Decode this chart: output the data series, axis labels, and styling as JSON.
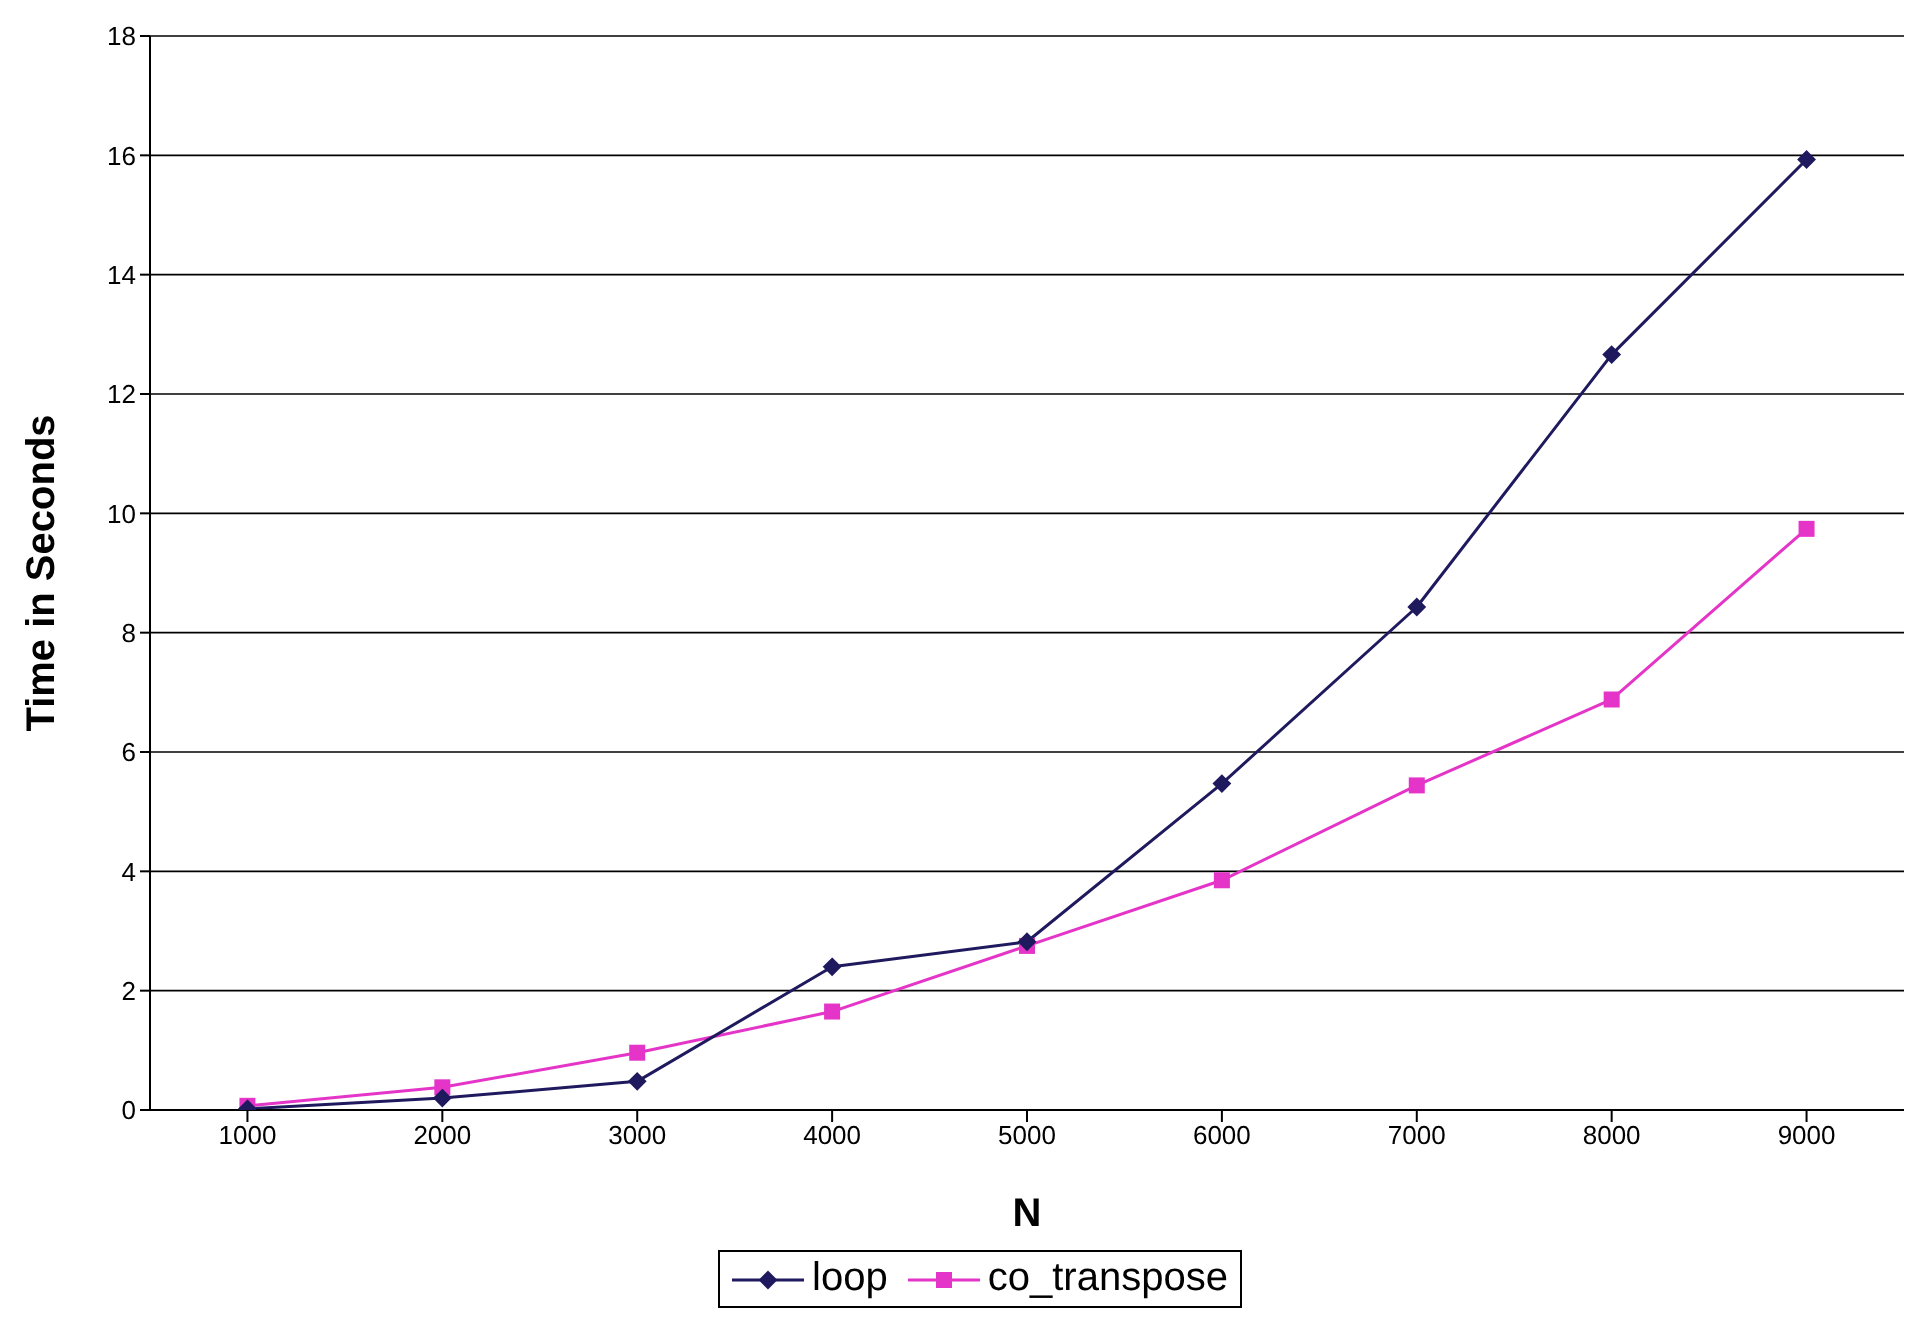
{
  "chart_data": {
    "type": "line",
    "xlabel": "N",
    "ylabel": "Time in Seconds",
    "categories": [
      "1000",
      "2000",
      "3000",
      "4000",
      "5000",
      "6000",
      "7000",
      "8000",
      "9000"
    ],
    "series": [
      {
        "name": "loop",
        "color": "#1f1a5e",
        "marker": "diamond",
        "values": [
          0.02,
          0.2,
          0.48,
          2.4,
          2.82,
          5.47,
          8.43,
          12.66,
          15.93
        ]
      },
      {
        "name": "co_transpose",
        "color": "#e534c8",
        "marker": "square",
        "values": [
          0.07,
          0.38,
          0.96,
          1.65,
          2.75,
          3.85,
          5.44,
          6.88,
          9.74
        ]
      }
    ],
    "ylim": [
      0,
      18
    ],
    "yticks": [
      0,
      2,
      4,
      6,
      8,
      10,
      12,
      14,
      16,
      18
    ],
    "grid": "y",
    "legend": "bottom",
    "line_style": "solid"
  }
}
